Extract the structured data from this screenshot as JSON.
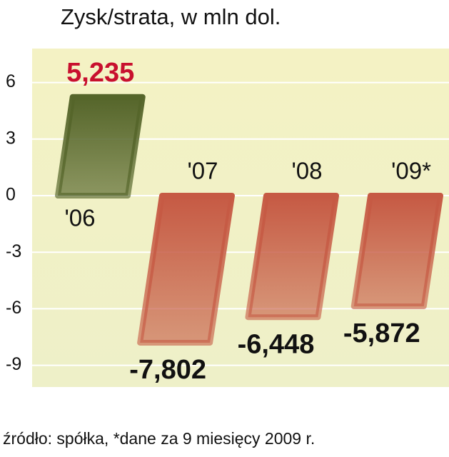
{
  "chart_data": {
    "type": "bar",
    "title": "Zysk/strata, w mln dol.",
    "categories": [
      "'06",
      "'07",
      "'08",
      "'09*"
    ],
    "values": [
      5.235,
      -7.802,
      -6.448,
      -5.872
    ],
    "value_labels": [
      "5,235",
      "-7,802",
      "-6,448",
      "-5,872"
    ],
    "ylim": [
      -10,
      7.7
    ],
    "yticks": [
      6,
      3,
      0,
      -3,
      -6,
      -9
    ],
    "grid": true,
    "positive_color": "#55652a",
    "negative_color": "#c65a44",
    "positive_label_color": "#c8102e",
    "source": "źródło: spółka, *dane za 9 miesięcy 2009 r."
  }
}
